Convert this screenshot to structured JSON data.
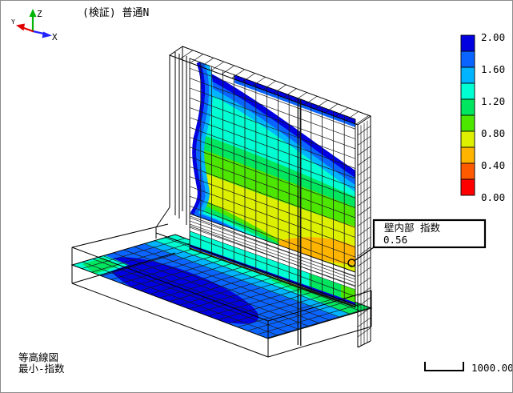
{
  "window": {
    "background": "#ffffff",
    "border_color": "#8c8c8c"
  },
  "title": "(検証) 普通N",
  "axis_triad": {
    "z": {
      "label": "Z",
      "color": "#00b400"
    },
    "x": {
      "label": "X",
      "color": "#2222ff"
    },
    "y": {
      "label": "Y",
      "color": "#e00000"
    }
  },
  "legend": {
    "tick_labels": [
      "2.00",
      "1.60",
      "1.20",
      "0.80",
      "0.40",
      "0.00"
    ],
    "colors_top_to_bottom": [
      "#0000e0",
      "#0a64ff",
      "#00b4ff",
      "#00ffd2",
      "#00e65f",
      "#4ce600",
      "#dcf000",
      "#ffb400",
      "#ff5a00",
      "#ff0000"
    ]
  },
  "callout": {
    "line1": "壁内部 指数",
    "line2": "0.56"
  },
  "footer": {
    "line1": "等高線図",
    "line2": "最小-指数"
  },
  "scale_bar": {
    "label": "1000.00"
  },
  "chart_data": {
    "type": "heatmap",
    "title": "(検証) 普通N",
    "quantity": "最小-指数",
    "figure": "等高線図 (contour map of an L-shaped wall and footing, isometric wireframe view)",
    "legend": {
      "min": 0.0,
      "max": 2.0,
      "band_step": 0.2,
      "tick_labels": [
        2.0,
        1.6,
        1.2,
        0.8,
        0.4,
        0.0
      ],
      "colors_top_to_bottom": [
        "#0000e0",
        "#0a64ff",
        "#00b4ff",
        "#00ffd2",
        "#00e65f",
        "#4ce600",
        "#dcf000",
        "#ffb400",
        "#ff5a00",
        "#ff0000"
      ]
    },
    "annotations": [
      {
        "label": "壁内部 指数",
        "value": 0.56,
        "location": "lower-right of wall section, marked with circle and leader line"
      }
    ],
    "scale_bar_length": 1000.0,
    "regions": [
      {
        "name": "wall-section",
        "bands_top_to_bottom": [
          ">2.00 (white)",
          "1.80-2.00",
          "1.60-1.80",
          "1.40-1.60",
          "1.20-1.40",
          "1.00-1.20",
          "0.80-1.00",
          "0.60-0.80",
          "0.40-0.60 (contains minimum 0.56)"
        ]
      },
      {
        "name": "footing-section",
        "dominant_band": "1.60-1.80",
        "features": [
          "1.80-2.00 patch at left-center",
          "1.20-1.40 band along wall base"
        ]
      }
    ]
  }
}
